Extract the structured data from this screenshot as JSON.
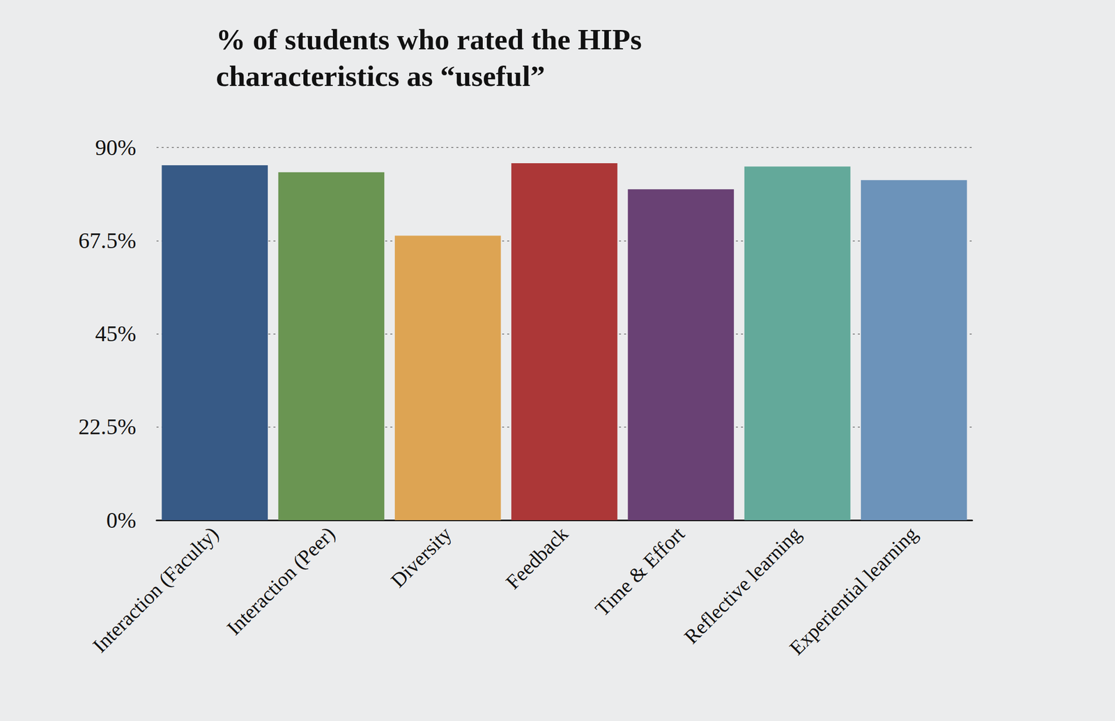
{
  "chart_data": {
    "type": "bar",
    "title": "% of students who rated the HIPs\ncharacteristics as “useful”",
    "categories": [
      "Interaction (Faculty)",
      "Interaction (Peer)",
      "Diversity",
      "Feedback",
      "Time & Effort",
      "Reflective learning",
      "Experiential learning"
    ],
    "values": [
      85.7,
      84.0,
      68.7,
      86.2,
      79.9,
      85.4,
      82.1
    ],
    "colors": [
      "#375a86",
      "#6a9552",
      "#dda453",
      "#ac3737",
      "#694174",
      "#63a99a",
      "#6c93ba"
    ],
    "ylim": [
      0,
      90
    ],
    "yticks": [
      {
        "value": 0,
        "label": "0%"
      },
      {
        "value": 22.5,
        "label": "22.5%"
      },
      {
        "value": 45,
        "label": "45%"
      },
      {
        "value": 67.5,
        "label": "67.5%"
      },
      {
        "value": 90,
        "label": "90%"
      }
    ],
    "grid": true
  }
}
